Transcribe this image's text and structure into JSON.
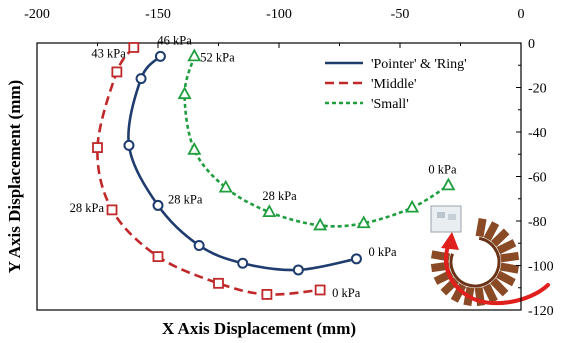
{
  "chart_data": {
    "type": "line",
    "xlabel": "X Axis Displacement (mm)",
    "ylabel": "Y Axis Displacement (mm)",
    "xlim": [
      -200,
      0
    ],
    "ylim": [
      -120,
      0
    ],
    "x_ticks": [
      -200,
      -150,
      -100,
      -50,
      0
    ],
    "y_ticks": [
      0,
      -20,
      -40,
      -60,
      -80,
      -100,
      -120
    ],
    "x_tick_labels": [
      "-200",
      "-150",
      "-100",
      "-50",
      "0"
    ],
    "y_tick_labels": [
      "0",
      "-20",
      "-40",
      "-60",
      "-80",
      "-100",
      "-120"
    ],
    "grid": false,
    "legend_position": "top-right",
    "series": [
      {
        "name": "'Pointer' & 'Ring'",
        "color": "#1f3c6e",
        "line_style": "solid",
        "marker": "circle",
        "x": [
          -149,
          -157,
          -162,
          -150,
          -133,
          -115,
          -92,
          -68
        ],
        "y": [
          -6,
          -16,
          -46,
          -73,
          -91,
          -99,
          -102,
          -97
        ]
      },
      {
        "name": "'Middle'",
        "color": "#c0282a",
        "line_style": "dashed",
        "marker": "square",
        "x": [
          -160,
          -167,
          -175,
          -169,
          -150,
          -125,
          -105,
          -83
        ],
        "y": [
          -2,
          -13,
          -47,
          -75,
          -96,
          -108,
          -113,
          -111
        ]
      },
      {
        "name": "'Small'",
        "color": "#1f9e3e",
        "line_style": "dotted",
        "marker": "triangle",
        "x": [
          -135,
          -139,
          -135,
          -122,
          -104,
          -83,
          -65,
          -45,
          -30
        ],
        "y": [
          -6,
          -23,
          -48,
          -65,
          -76,
          -82,
          -81,
          -74,
          -64
        ]
      }
    ],
    "annotations": [
      {
        "text": "46 kPa",
        "x": -149,
        "y": -6
      },
      {
        "text": "43 kPa",
        "x": -160,
        "y": -2
      },
      {
        "text": "52 kPa",
        "x": -135,
        "y": -6
      },
      {
        "text": "28 kPa",
        "x": -150,
        "y": -73
      },
      {
        "text": "28 kPa",
        "x": -169,
        "y": -75
      },
      {
        "text": "28 kPa",
        "x": -104,
        "y": -76
      },
      {
        "text": "0 kPa",
        "x": -30,
        "y": -64
      },
      {
        "text": "0 kPa",
        "x": -68,
        "y": -97
      },
      {
        "text": "0 kPa",
        "x": -83,
        "y": -111
      }
    ]
  }
}
